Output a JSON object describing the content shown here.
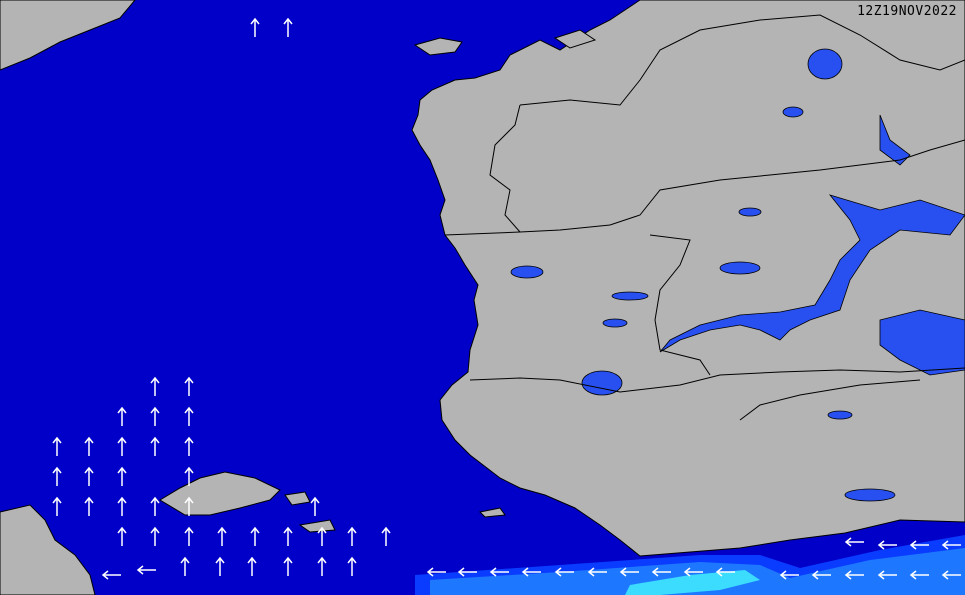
{
  "map": {
    "timestamp": "12Z19NOV2022",
    "colors": {
      "sea": "#0000c8",
      "land": "#b4b4b4",
      "lake": "#2850f0",
      "swell_low": "#0a3cff",
      "swell_mid": "#1e78ff",
      "swell_high": "#3cdcff",
      "arrow": "#ffffff",
      "border": "#000000"
    },
    "arrow_directions": [
      "north",
      "west"
    ]
  }
}
